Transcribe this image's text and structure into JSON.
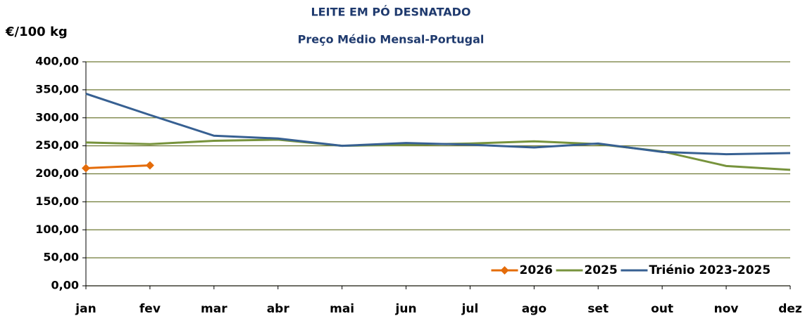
{
  "chart_data": {
    "type": "line",
    "title": "LEITE EM PÓ DESNATADO",
    "subtitle": "Preço Médio Mensal-Portugal",
    "y_label": "€/100 kg",
    "categories": [
      "jan",
      "fev",
      "mar",
      "abr",
      "mai",
      "jun",
      "jul",
      "ago",
      "set",
      "out",
      "nov",
      "dez"
    ],
    "series": [
      {
        "name": "2026",
        "color": "#e46c0a",
        "marker": "diamond",
        "values": [
          210,
          215,
          null,
          null,
          null,
          null,
          null,
          null,
          null,
          null,
          null,
          null
        ]
      },
      {
        "name": "2025",
        "color": "#77933c",
        "values": [
          256,
          253,
          259,
          261,
          250,
          252,
          254,
          258,
          253,
          240,
          214,
          207
        ]
      },
      {
        "name": "Triénio 2023-2025",
        "color": "#376092",
        "values": [
          343,
          305,
          268,
          263,
          250,
          255,
          252,
          247,
          254,
          239,
          235,
          237
        ]
      }
    ],
    "ylim": [
      0,
      400
    ],
    "yticks": [
      {
        "value": 0,
        "label": "0,00"
      },
      {
        "value": 50,
        "label": "50,00"
      },
      {
        "value": 100,
        "label": "100,00"
      },
      {
        "value": 150,
        "label": "150,00"
      },
      {
        "value": 200,
        "label": "200,00"
      },
      {
        "value": 250,
        "label": "250,00"
      },
      {
        "value": 300,
        "label": "300,00"
      },
      {
        "value": 350,
        "label": "350,00"
      },
      {
        "value": 400,
        "label": "400,00"
      }
    ],
    "grid": true,
    "grid_color": "#6f7a35",
    "legend": "lower right"
  }
}
